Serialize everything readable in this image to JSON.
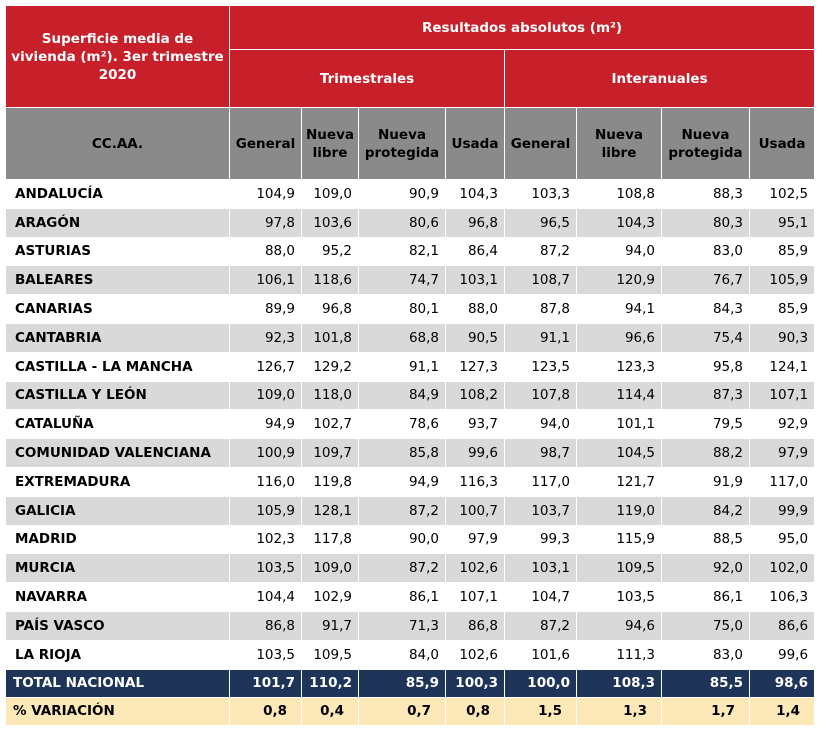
{
  "header": {
    "corner": "Superficie media de vivienda (m²). 3er trimestre 2020",
    "top": "Resultados absolutos (m²)",
    "group_trimestrales": "Trimestrales",
    "group_interanuales": "Interanuales",
    "region_col": "CC.AA.",
    "cols": [
      "General",
      "Nueva libre",
      "Nueva protegida",
      "Usada",
      "General",
      "Nueva libre",
      "Nueva protegida",
      "Usada"
    ]
  },
  "rows": [
    {
      "region": "ANDALUCÍA",
      "values": [
        "104,9",
        "109,0",
        "90,9",
        "104,3",
        "103,3",
        "108,8",
        "88,3",
        "102,5"
      ]
    },
    {
      "region": "ARAGÓN",
      "values": [
        "97,8",
        "103,6",
        "80,6",
        "96,8",
        "96,5",
        "104,3",
        "80,3",
        "95,1"
      ]
    },
    {
      "region": "ASTURIAS",
      "values": [
        "88,0",
        "95,2",
        "82,1",
        "86,4",
        "87,2",
        "94,0",
        "83,0",
        "85,9"
      ]
    },
    {
      "region": "BALEARES",
      "values": [
        "106,1",
        "118,6",
        "74,7",
        "103,1",
        "108,7",
        "120,9",
        "76,7",
        "105,9"
      ]
    },
    {
      "region": "CANARIAS",
      "values": [
        "89,9",
        "96,8",
        "80,1",
        "88,0",
        "87,8",
        "94,1",
        "84,3",
        "85,9"
      ]
    },
    {
      "region": "CANTABRIA",
      "values": [
        "92,3",
        "101,8",
        "68,8",
        "90,5",
        "91,1",
        "96,6",
        "75,4",
        "90,3"
      ]
    },
    {
      "region": "CASTILLA - LA MANCHA",
      "values": [
        "126,7",
        "129,2",
        "91,1",
        "127,3",
        "123,5",
        "123,3",
        "95,8",
        "124,1"
      ]
    },
    {
      "region": "CASTILLA Y LEÓN",
      "values": [
        "109,0",
        "118,0",
        "84,9",
        "108,2",
        "107,8",
        "114,4",
        "87,3",
        "107,1"
      ]
    },
    {
      "region": "CATALUÑA",
      "values": [
        "94,9",
        "102,7",
        "78,6",
        "93,7",
        "94,0",
        "101,1",
        "79,5",
        "92,9"
      ]
    },
    {
      "region": "COMUNIDAD VALENCIANA",
      "values": [
        "100,9",
        "109,7",
        "85,8",
        "99,6",
        "98,7",
        "104,5",
        "88,2",
        "97,9"
      ]
    },
    {
      "region": "EXTREMADURA",
      "values": [
        "116,0",
        "119,8",
        "94,9",
        "116,3",
        "117,0",
        "121,7",
        "91,9",
        "117,0"
      ]
    },
    {
      "region": "GALICIA",
      "values": [
        "105,9",
        "128,1",
        "87,2",
        "100,7",
        "103,7",
        "119,0",
        "84,2",
        "99,9"
      ]
    },
    {
      "region": "MADRID",
      "values": [
        "102,3",
        "117,8",
        "90,0",
        "97,9",
        "99,3",
        "115,9",
        "88,5",
        "95,0"
      ]
    },
    {
      "region": "MURCIA",
      "values": [
        "103,5",
        "109,0",
        "87,2",
        "102,6",
        "103,1",
        "109,5",
        "92,0",
        "102,0"
      ]
    },
    {
      "region": "NAVARRA",
      "values": [
        "104,4",
        "102,9",
        "86,1",
        "107,1",
        "104,7",
        "103,5",
        "86,1",
        "106,3"
      ]
    },
    {
      "region": "PAÍS VASCO",
      "values": [
        "86,8",
        "91,7",
        "71,3",
        "86,8",
        "87,2",
        "94,6",
        "75,0",
        "86,6"
      ]
    },
    {
      "region": "LA RIOJA",
      "values": [
        "103,5",
        "109,5",
        "84,0",
        "102,6",
        "101,6",
        "111,3",
        "83,0",
        "99,6"
      ]
    }
  ],
  "total": {
    "region": "TOTAL NACIONAL",
    "values": [
      "101,7",
      "110,2",
      "85,9",
      "100,3",
      "100,0",
      "108,3",
      "85,5",
      "98,6"
    ]
  },
  "variation": {
    "region": "% VARIACIÓN",
    "values": [
      "0,8",
      "0,4",
      "0,7",
      "0,8",
      "1,5",
      "1,3",
      "1,7",
      "1,4"
    ]
  },
  "colors": {
    "header_red": "#c8202a",
    "header_grey": "#8a8a8a",
    "total_navy": "#1e3458",
    "variation_cream": "#fde9b8",
    "row_alt": "#d9d9d9"
  }
}
